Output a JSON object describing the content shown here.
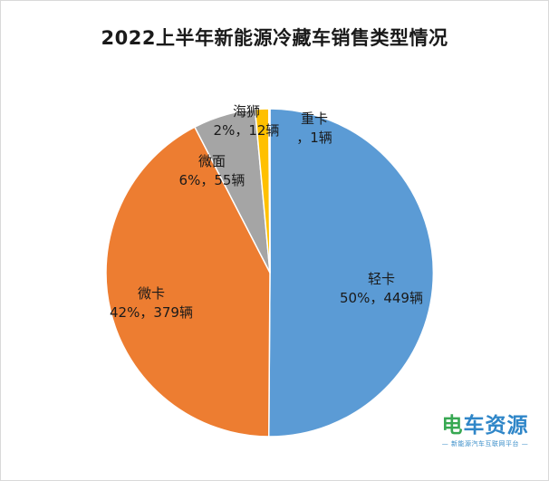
{
  "chart_data": {
    "type": "pie",
    "title": "2022上半年新能源冷藏车销售类型情况",
    "start_angle_deg": 0,
    "direction": "clockwise",
    "slices": [
      {
        "name": "轻卡",
        "value": 449,
        "percent_label": "50%，449辆",
        "color": "#5b9bd5"
      },
      {
        "name": "微卡",
        "value": 379,
        "percent_label": "42%，379辆",
        "color": "#ed7d31"
      },
      {
        "name": "微面",
        "value": 55,
        "percent_label": "6%，55辆",
        "color": "#a5a5a5"
      },
      {
        "name": "海狮",
        "value": 12,
        "percent_label": "2%，12辆",
        "color": "#ffc000"
      },
      {
        "name": "重卡",
        "value": 1,
        "percent_label": "，1辆",
        "color": "#4472c4"
      }
    ]
  },
  "watermark": {
    "logo_first": "电",
    "logo_rest": "车资源",
    "tagline": "— 新能源汽车互联网平台 —"
  }
}
